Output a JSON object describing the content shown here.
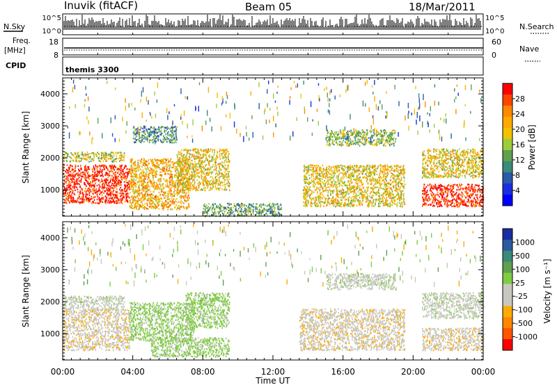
{
  "header": {
    "station": "Inuvik (fitACF)",
    "beam": "Beam 05",
    "date": "18/Mar/2011"
  },
  "noise_panel": {
    "left_label": "N.Sky",
    "right_label": "N.Search",
    "left_ticks": [
      "10^5",
      "10^0"
    ],
    "right_ticks": [
      "10^5",
      "10^0"
    ]
  },
  "freq_panel": {
    "left_label_1": "Freq.",
    "left_label_2": "[MHz]",
    "right_label": "Nave",
    "left_ticks": [
      "18",
      "8"
    ],
    "right_ticks": [
      "60",
      "0"
    ]
  },
  "cpid_panel": {
    "label": "CPID",
    "text": "themis 3300"
  },
  "power_panel": {
    "ylabel": "Slant Range [km]",
    "yticks": [
      "4000",
      "3000",
      "2000",
      "1000"
    ],
    "colorbar_label": "Power [dB]",
    "colorbar_ticks": [
      "28",
      "24",
      "20",
      "16",
      "12",
      "8",
      "4"
    ],
    "colorbar_colors": [
      "#ff0000",
      "#ff4400",
      "#ff8800",
      "#ffaa00",
      "#f2c200",
      "#9ccc3a",
      "#5fa050",
      "#3c8a78",
      "#2a5aa8",
      "#1a2ee0",
      "#0000ff"
    ]
  },
  "velocity_panel": {
    "ylabel": "Slant Range [km]",
    "yticks": [
      "4000",
      "3000",
      "2000",
      "1000"
    ],
    "colorbar_label": "Velocity [m s⁻¹]",
    "colorbar_ticks": [
      "1000",
      "500",
      "100",
      "25",
      "-25",
      "-100",
      "-500",
      "-1000"
    ],
    "colorbar_colors": [
      "#1a2ea0",
      "#2a5aa0",
      "#3c8a78",
      "#5fa050",
      "#7fcc40",
      "#c8c8c0",
      "#c8c8c0",
      "#ffaa00",
      "#ff8800",
      "#ff5500",
      "#ff0000"
    ]
  },
  "time_axis": {
    "ticks": [
      "00:00",
      "04:00",
      "08:00",
      "12:00",
      "16:00",
      "20:00",
      "00:00"
    ],
    "label": "Time UT"
  },
  "chart_data": [
    {
      "type": "heatmap",
      "name_in_figure": "Power [dB]",
      "xlabel": "Time UT",
      "ylabel": "Slant Range [km]",
      "xlim": [
        "00:00",
        "24:00"
      ],
      "ylim": [
        180,
        4500
      ],
      "color_scale": [
        0,
        30
      ],
      "approx_echo_regions": [
        {
          "t_start": 0.0,
          "t_end": 3.8,
          "range_min": 600,
          "range_max": 1800,
          "value_db": 28
        },
        {
          "t_start": 0.0,
          "t_end": 3.5,
          "range_min": 1900,
          "range_max": 2200,
          "value_db": 16
        },
        {
          "t_start": 3.8,
          "t_end": 7.2,
          "range_min": 400,
          "range_max": 2000,
          "value_db": 20
        },
        {
          "t_start": 4.0,
          "t_end": 6.5,
          "range_min": 2500,
          "range_max": 3000,
          "value_db": 10
        },
        {
          "t_start": 6.5,
          "t_end": 9.5,
          "range_min": 1000,
          "range_max": 2300,
          "value_db": 18
        },
        {
          "t_start": 8.0,
          "t_end": 12.5,
          "range_min": 200,
          "range_max": 600,
          "value_db": 12
        },
        {
          "t_start": 13.7,
          "t_end": 19.5,
          "range_min": 500,
          "range_max": 1800,
          "value_db": 18
        },
        {
          "t_start": 15.0,
          "t_end": 19.0,
          "range_min": 2400,
          "range_max": 2900,
          "value_db": 14
        },
        {
          "t_start": 20.5,
          "t_end": 24.0,
          "range_min": 500,
          "range_max": 1200,
          "value_db": 28
        },
        {
          "t_start": 20.5,
          "t_end": 24.0,
          "range_min": 1400,
          "range_max": 2300,
          "value_db": 18
        }
      ]
    },
    {
      "type": "heatmap",
      "name_in_figure": "Velocity [m s⁻¹]",
      "xlabel": "Time UT",
      "ylabel": "Slant Range [km]",
      "xlim": [
        "00:00",
        "24:00"
      ],
      "ylim": [
        180,
        4500
      ],
      "color_scale": [
        -1000,
        1000
      ],
      "approx_echo_regions": [
        {
          "t_start": 0.0,
          "t_end": 3.8,
          "range_min": 500,
          "range_max": 1800,
          "value_ms": -200
        },
        {
          "t_start": 0.0,
          "t_end": 3.5,
          "range_min": 1800,
          "range_max": 2200,
          "value_ms": 0
        },
        {
          "t_start": 3.8,
          "t_end": 7.5,
          "range_min": 800,
          "range_max": 2000,
          "value_ms": 150
        },
        {
          "t_start": 5.0,
          "t_end": 9.5,
          "range_min": 300,
          "range_max": 900,
          "value_ms": 150
        },
        {
          "t_start": 7.0,
          "t_end": 9.5,
          "range_min": 1200,
          "range_max": 2300,
          "value_ms": 150
        },
        {
          "t_start": 13.5,
          "t_end": 19.5,
          "range_min": 500,
          "range_max": 1800,
          "value_ms": -200
        },
        {
          "t_start": 15.0,
          "t_end": 19.0,
          "range_min": 2400,
          "range_max": 2900,
          "value_ms": 0
        },
        {
          "t_start": 20.5,
          "t_end": 24.0,
          "range_min": 500,
          "range_max": 1200,
          "value_ms": -200
        },
        {
          "t_start": 20.5,
          "t_end": 24.0,
          "range_min": 1500,
          "range_max": 2300,
          "value_ms": 0
        }
      ]
    }
  ]
}
